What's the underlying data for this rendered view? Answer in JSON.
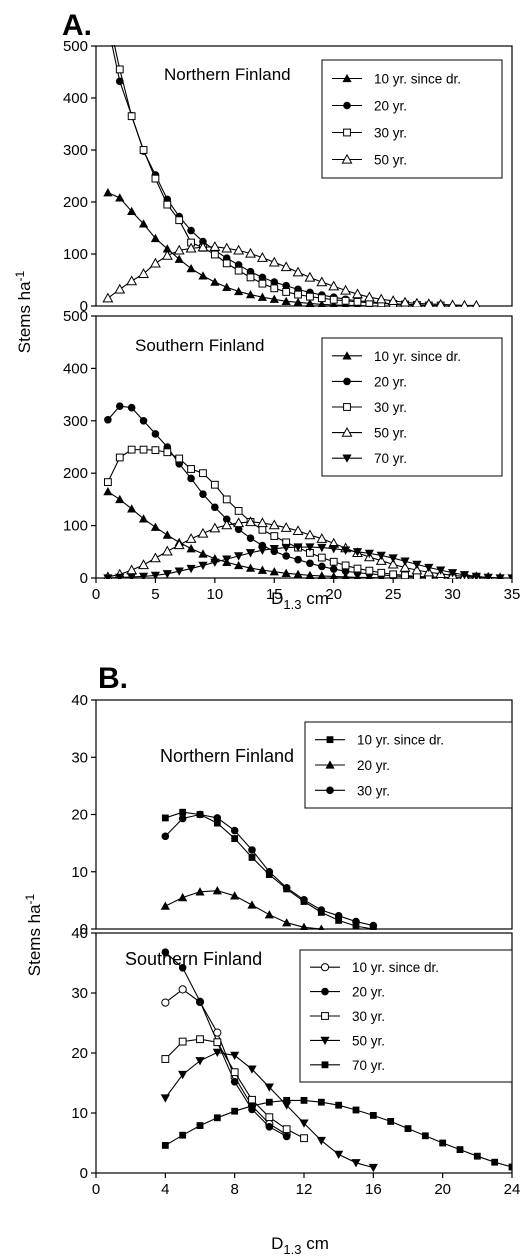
{
  "panels": [
    {
      "letter": "A."
    },
    {
      "letter": "B."
    }
  ],
  "chart_data": [
    {
      "type": "line",
      "panel": "A.",
      "title": "Northern Finland",
      "xlabel": "D1.3 cm",
      "ylabel": "Stems ha-1",
      "ylim": [
        0,
        500
      ],
      "yticks": [
        "0",
        "100",
        "200",
        "300",
        "400",
        "500"
      ],
      "xlim": [
        0,
        35
      ],
      "legend": "top-right",
      "series": [
        {
          "name": "10 yr. since dr.",
          "marker": "triangle-filled",
          "x": [
            1,
            2,
            3,
            4,
            5,
            6,
            7,
            8,
            9,
            10,
            11,
            12,
            13,
            14,
            15,
            16,
            17,
            18,
            19,
            20,
            21,
            22,
            23
          ],
          "y": [
            218,
            208,
            182,
            158,
            130,
            110,
            90,
            72,
            58,
            46,
            36,
            28,
            22,
            17,
            13,
            9,
            7,
            5,
            3,
            2,
            1,
            1,
            0
          ]
        },
        {
          "name": "20 yr.",
          "marker": "circle-filled",
          "x": [
            1,
            2,
            3,
            4,
            5,
            6,
            7,
            8,
            9,
            10,
            11,
            12,
            13,
            14,
            15,
            16,
            17,
            18,
            19,
            20,
            21,
            22,
            23,
            24,
            25,
            26,
            27
          ],
          "y": [
            540,
            432,
            366,
            298,
            252,
            205,
            172,
            145,
            124,
            107,
            92,
            79,
            66,
            55,
            46,
            39,
            32,
            26,
            21,
            17,
            13,
            10,
            8,
            6,
            4,
            3,
            2
          ]
        },
        {
          "name": "30 yr.",
          "marker": "square-open",
          "x": [
            1,
            2,
            3,
            4,
            5,
            6,
            7,
            8,
            9,
            10,
            11,
            12,
            13,
            14,
            15,
            16,
            17,
            18,
            19,
            20,
            21,
            22,
            23,
            24,
            25,
            26,
            27,
            28,
            29
          ],
          "y": [
            560,
            455,
            365,
            300,
            245,
            195,
            165,
            122,
            112,
            99,
            82,
            68,
            55,
            43,
            34,
            27,
            22,
            18,
            15,
            12,
            10,
            8,
            6,
            5,
            4,
            3,
            2,
            1,
            1
          ]
        },
        {
          "name": "50 yr.",
          "marker": "triangle-open",
          "x": [
            1,
            2,
            3,
            4,
            5,
            6,
            7,
            8,
            9,
            10,
            11,
            12,
            13,
            14,
            15,
            16,
            17,
            18,
            19,
            20,
            21,
            22,
            23,
            24,
            25,
            26,
            27,
            28,
            29,
            30,
            31,
            32
          ],
          "y": [
            15,
            32,
            48,
            62,
            82,
            97,
            107,
            111,
            113,
            114,
            111,
            107,
            101,
            93,
            84,
            75,
            65,
            55,
            46,
            38,
            30,
            23,
            17,
            13,
            10,
            7,
            5,
            4,
            3,
            2,
            1,
            1
          ]
        }
      ]
    },
    {
      "type": "line",
      "panel": "A.",
      "title": "Southern Finland",
      "xlabel": "D1.3 cm",
      "ylabel": "Stems ha-1",
      "ylim": [
        0,
        500
      ],
      "yticks": [
        "0",
        "100",
        "200",
        "300",
        "400",
        "500"
      ],
      "xlim": [
        0,
        35
      ],
      "xticks": [
        "0",
        "5",
        "10",
        "15",
        "20",
        "25",
        "30",
        "35"
      ],
      "legend": "top-right",
      "series": [
        {
          "name": "10 yr. since dr.",
          "marker": "triangle-filled",
          "x": [
            1,
            2,
            3,
            4,
            5,
            6,
            7,
            8,
            9,
            10,
            11,
            12,
            13,
            14,
            15,
            16,
            17,
            18,
            19,
            20,
            21,
            22,
            23,
            24,
            25
          ],
          "y": [
            165,
            150,
            132,
            113,
            97,
            82,
            68,
            56,
            46,
            37,
            30,
            24,
            19,
            15,
            12,
            9,
            7,
            5,
            4,
            3,
            2,
            1,
            1,
            0,
            0
          ]
        },
        {
          "name": "20 yr.",
          "marker": "circle-filled",
          "x": [
            1,
            2,
            3,
            4,
            5,
            6,
            7,
            8,
            9,
            10,
            11,
            12,
            13,
            14,
            15,
            16,
            17,
            18,
            19,
            20,
            21,
            22,
            23,
            24,
            25,
            26,
            27,
            28,
            29,
            30
          ],
          "y": [
            302,
            328,
            325,
            300,
            275,
            250,
            218,
            190,
            160,
            135,
            112,
            93,
            76,
            62,
            51,
            42,
            35,
            28,
            22,
            17,
            13,
            10,
            8,
            6,
            4,
            3,
            2,
            1,
            1,
            0
          ]
        },
        {
          "name": "30 yr.",
          "marker": "square-open",
          "x": [
            1,
            2,
            3,
            4,
            5,
            6,
            7,
            8,
            9,
            10,
            11,
            12,
            13,
            14,
            15,
            16,
            17,
            18,
            19,
            20,
            21,
            22,
            23,
            24,
            25,
            26,
            27,
            28,
            29,
            30,
            31,
            32
          ],
          "y": [
            183,
            230,
            245,
            245,
            244,
            240,
            228,
            208,
            200,
            178,
            150,
            128,
            107,
            92,
            80,
            68,
            58,
            48,
            39,
            31,
            24,
            18,
            14,
            10,
            7,
            5,
            3,
            2,
            1,
            1,
            0,
            0
          ]
        },
        {
          "name": "50 yr.",
          "marker": "triangle-open",
          "x": [
            1,
            2,
            3,
            4,
            5,
            6,
            7,
            8,
            9,
            10,
            11,
            12,
            13,
            14,
            15,
            16,
            17,
            18,
            19,
            20,
            21,
            22,
            23,
            24,
            25,
            26,
            27,
            28,
            29,
            30,
            31,
            32,
            33,
            34
          ],
          "y": [
            2,
            7,
            15,
            25,
            38,
            51,
            63,
            75,
            85,
            95,
            101,
            105,
            107,
            105,
            101,
            96,
            90,
            82,
            75,
            66,
            57,
            48,
            40,
            33,
            26,
            20,
            15,
            11,
            8,
            5,
            3,
            2,
            1,
            0
          ]
        },
        {
          "name": "70 yr.",
          "marker": "triangle-down-filled",
          "x": [
            1,
            2,
            3,
            4,
            5,
            6,
            7,
            8,
            9,
            10,
            11,
            12,
            13,
            14,
            15,
            16,
            17,
            18,
            19,
            20,
            21,
            22,
            23,
            24,
            25,
            26,
            27,
            28,
            29,
            30,
            31,
            32,
            33,
            34,
            35
          ],
          "y": [
            0,
            1,
            2,
            3,
            5,
            8,
            13,
            18,
            24,
            30,
            36,
            42,
            48,
            53,
            56,
            58,
            59,
            59,
            58,
            56,
            53,
            50,
            47,
            43,
            38,
            32,
            26,
            20,
            15,
            10,
            6,
            3,
            1,
            0,
            0
          ]
        }
      ]
    },
    {
      "type": "line",
      "panel": "B.",
      "title": "Northern Finland",
      "xlabel": "D1.3 cm",
      "ylabel": "Stems ha-1",
      "ylim": [
        0,
        40
      ],
      "yticks": [
        "0",
        "10",
        "20",
        "30",
        "40"
      ],
      "xlim": [
        0,
        24
      ],
      "legend": "top-right",
      "series": [
        {
          "name": "10 yr. since dr.",
          "marker": "square-filled",
          "x": [
            4,
            5,
            6,
            7,
            8,
            9,
            10,
            11,
            12,
            13,
            14,
            15,
            16
          ],
          "y": [
            19.4,
            20.4,
            20,
            18.5,
            15.8,
            12.5,
            9.5,
            7,
            4.8,
            2.9,
            1.5,
            0.5,
            0
          ]
        },
        {
          "name": "20 yr.",
          "marker": "triangle-filled",
          "x": [
            4,
            5,
            6,
            7,
            8,
            9,
            10,
            11,
            12,
            13
          ],
          "y": [
            4,
            5.5,
            6.5,
            6.7,
            5.8,
            4.2,
            2.5,
            1.1,
            0.3,
            0
          ]
        },
        {
          "name": "30 yr.",
          "marker": "circle-filled",
          "x": [
            4,
            5,
            6,
            7,
            8,
            9,
            10,
            11,
            12,
            13,
            14,
            15,
            16
          ],
          "y": [
            16.2,
            19.3,
            20,
            19.4,
            17.2,
            13.8,
            10,
            7.2,
            5.1,
            3.3,
            2.3,
            1.3,
            0.6
          ]
        }
      ]
    },
    {
      "type": "line",
      "panel": "B.",
      "title": "Southern Finland",
      "xlabel": "D1.3 cm",
      "ylabel": "Stems ha-1",
      "ylim": [
        0,
        40
      ],
      "yticks": [
        "0",
        "10",
        "20",
        "30",
        "40"
      ],
      "xlim": [
        0,
        24
      ],
      "xticks": [
        "0",
        "4",
        "8",
        "12",
        "16",
        "20",
        "24"
      ],
      "legend": "top-right",
      "series": [
        {
          "name": "10 yr. since dr.",
          "marker": "circle-open",
          "x": [
            4,
            5,
            6,
            7,
            8,
            9,
            10,
            11
          ],
          "y": [
            28.4,
            30.6,
            28.5,
            23.4,
            16,
            11.2,
            8.2,
            6.4
          ]
        },
        {
          "name": "20 yr.",
          "marker": "circle-filled",
          "x": [
            4,
            5,
            6,
            7,
            8,
            9,
            10,
            11
          ],
          "y": [
            36.8,
            34.2,
            28.6,
            21.8,
            15.2,
            10.6,
            7.7,
            6.1
          ]
        },
        {
          "name": "30 yr.",
          "marker": "square-open",
          "x": [
            4,
            5,
            6,
            7,
            8,
            9,
            10,
            11,
            12
          ],
          "y": [
            19,
            21.9,
            22.3,
            21.8,
            16.8,
            12.2,
            9.3,
            7.3,
            5.8
          ]
        },
        {
          "name": "50 yr.",
          "marker": "triangle-down-filled",
          "x": [
            4,
            5,
            6,
            7,
            8,
            9,
            10,
            11,
            12,
            13,
            14,
            15,
            16
          ],
          "y": [
            12.5,
            16.4,
            18.7,
            20.1,
            19.6,
            17.3,
            14.3,
            11.3,
            8.3,
            5.4,
            3.1,
            1.7,
            0.9
          ]
        },
        {
          "name": "70 yr.",
          "marker": "square-filled",
          "x": [
            4,
            5,
            6,
            7,
            8,
            9,
            10,
            11,
            12,
            13,
            14,
            15,
            16,
            17,
            18,
            19,
            20,
            21,
            22,
            23,
            24
          ],
          "y": [
            4.6,
            6.3,
            7.9,
            9.2,
            10.3,
            11.2,
            11.8,
            12.1,
            12.1,
            11.8,
            11.3,
            10.5,
            9.6,
            8.6,
            7.4,
            6.2,
            5,
            3.9,
            2.8,
            1.8,
            1
          ]
        }
      ]
    }
  ]
}
